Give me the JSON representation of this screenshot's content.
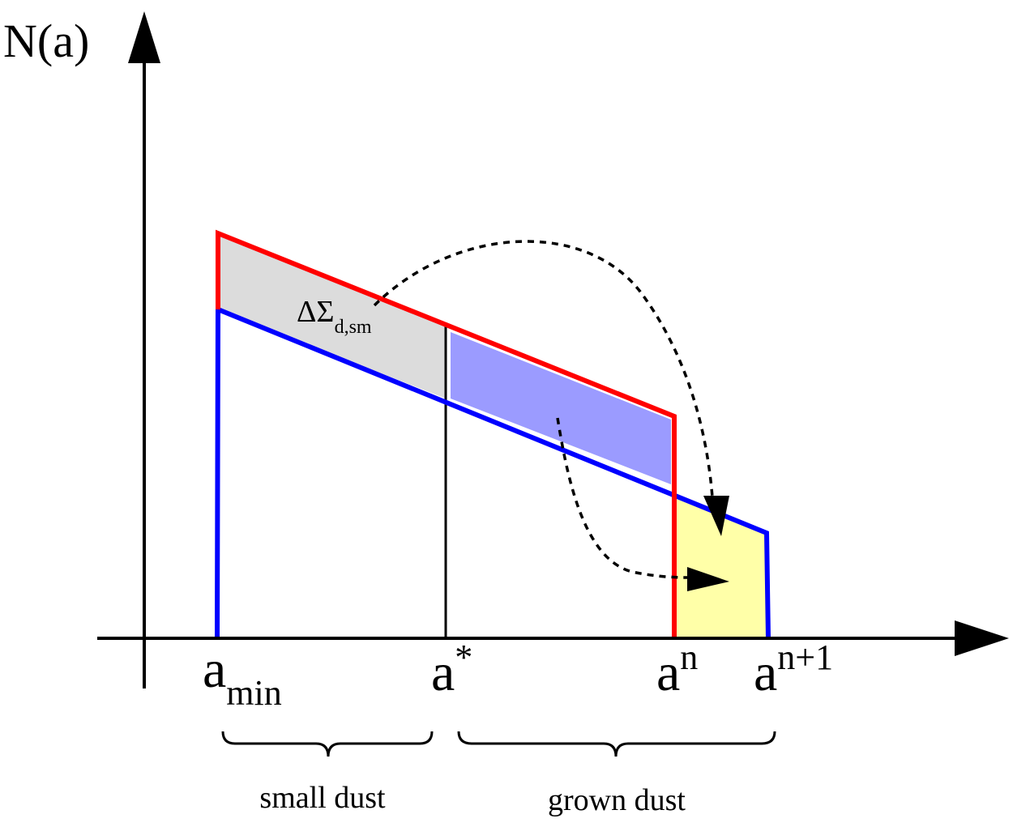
{
  "axes": {
    "y_label": "N(a)"
  },
  "tick_labels": {
    "a_min": {
      "base": "a",
      "sub": "min"
    },
    "a_star": {
      "base": "a",
      "sup": "*"
    },
    "a_n": {
      "base": "a",
      "sup": "n"
    },
    "a_n1": {
      "base": "a",
      "sup": "n+1"
    }
  },
  "annotation": {
    "delta_sigma": {
      "base": "ΔΣ",
      "sub": "d,sm"
    }
  },
  "ranges": {
    "small": "small dust",
    "grown": "grown dust"
  },
  "colors": {
    "red_line": "#ff0000",
    "blue_line": "#0000ff",
    "gray_fill": "#dcdcdc",
    "purple_fill": "#9b9bff",
    "yellow_fill": "#ffffa8"
  }
}
